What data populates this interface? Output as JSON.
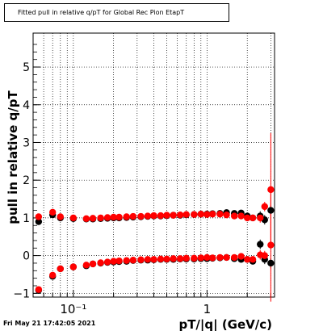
{
  "title": "Fitted pull in relative q/pT for Global Rec Pion EtapT",
  "footer_date": "Fri May 21 17:42:05 2021",
  "chart_data": {
    "type": "scatter",
    "title": "Fitted pull in relative q/pT for Global Rec Pion EtapT",
    "xlabel": "pT/|q| (GeV/c)",
    "ylabel": "pull in relative q/pT",
    "x_scale": "log",
    "xlim": [
      0.05,
      3.2
    ],
    "ylim": [
      -1.1,
      5.9
    ],
    "x_major_ticks": [
      0.1,
      1
    ],
    "x_tick_labels": [
      "10⁻¹",
      "1"
    ],
    "y_ticks": [
      -1,
      0,
      1,
      2,
      3,
      4,
      5
    ],
    "y_tick_labels": [
      "−1",
      "0",
      "1",
      "2",
      "3",
      "4",
      "5"
    ],
    "grid": true,
    "colors": {
      "black_series": "#000000",
      "red_series": "#ff0000"
    },
    "series": [
      {
        "marker": "black-filled-circle",
        "color": "#000000",
        "group": "mean",
        "x": [
          0.055,
          0.07,
          0.08,
          0.1,
          0.125,
          0.14,
          0.16,
          0.18,
          0.2,
          0.22,
          0.25,
          0.28,
          0.32,
          0.36,
          0.4,
          0.45,
          0.5,
          0.56,
          0.63,
          0.7,
          0.8,
          0.9,
          1.0,
          1.1,
          1.25,
          1.4,
          1.6,
          1.8,
          2.0,
          2.2,
          2.5,
          2.7,
          3.0
        ],
        "y": [
          0.9,
          1.08,
          1.0,
          0.98,
          0.97,
          0.97,
          0.98,
          0.99,
          1.0,
          1.0,
          1.01,
          1.02,
          1.03,
          1.04,
          1.05,
          1.05,
          1.06,
          1.07,
          1.07,
          1.08,
          1.09,
          1.1,
          1.1,
          1.11,
          1.12,
          1.14,
          1.12,
          1.13,
          1.05,
          1.0,
          1.05,
          0.95,
          1.2
        ]
      },
      {
        "marker": "red-filled-circle",
        "color": "#ff0000",
        "group": "mean",
        "x": [
          0.055,
          0.07,
          0.08,
          0.1,
          0.125,
          0.14,
          0.16,
          0.18,
          0.2,
          0.22,
          0.25,
          0.28,
          0.32,
          0.36,
          0.4,
          0.45,
          0.5,
          0.56,
          0.63,
          0.7,
          0.8,
          0.9,
          1.0,
          1.1,
          1.25,
          1.4,
          1.6,
          1.8,
          2.0,
          2.2,
          2.5,
          2.7,
          3.0
        ],
        "y": [
          1.03,
          1.15,
          1.03,
          1.0,
          0.98,
          0.99,
          1.0,
          1.01,
          1.02,
          1.02,
          1.03,
          1.04,
          1.04,
          1.05,
          1.06,
          1.06,
          1.07,
          1.07,
          1.08,
          1.09,
          1.09,
          1.1,
          1.09,
          1.1,
          1.1,
          1.08,
          1.05,
          1.05,
          1.0,
          1.0,
          1.0,
          1.3,
          1.75
        ]
      },
      {
        "marker": "black-filled-circle",
        "color": "#000000",
        "group": "lower",
        "x": [
          0.055,
          0.07,
          0.08,
          0.1,
          0.125,
          0.14,
          0.16,
          0.18,
          0.2,
          0.22,
          0.25,
          0.28,
          0.32,
          0.36,
          0.4,
          0.45,
          0.5,
          0.56,
          0.63,
          0.7,
          0.8,
          0.9,
          1.0,
          1.1,
          1.25,
          1.4,
          1.6,
          1.8,
          2.0,
          2.2,
          2.5,
          2.7,
          3.0
        ],
        "y": [
          -0.92,
          -0.55,
          -0.35,
          -0.3,
          -0.27,
          -0.22,
          -0.2,
          -0.18,
          -0.17,
          -0.16,
          -0.15,
          -0.13,
          -0.12,
          -0.12,
          -0.11,
          -0.1,
          -0.1,
          -0.1,
          -0.09,
          -0.09,
          -0.09,
          -0.08,
          -0.08,
          -0.07,
          -0.06,
          -0.05,
          -0.08,
          -0.1,
          -0.1,
          -0.15,
          0.3,
          -0.1,
          -0.2
        ]
      },
      {
        "marker": "red-filled-circle",
        "color": "#ff0000",
        "group": "lower",
        "x": [
          0.055,
          0.07,
          0.08,
          0.1,
          0.125,
          0.14,
          0.16,
          0.18,
          0.2,
          0.22,
          0.25,
          0.28,
          0.32,
          0.36,
          0.4,
          0.45,
          0.5,
          0.56,
          0.63,
          0.7,
          0.8,
          0.9,
          1.0,
          1.1,
          1.25,
          1.4,
          1.6,
          1.8,
          2.0,
          2.2,
          2.5,
          2.7,
          3.0
        ],
        "y": [
          -0.9,
          -0.52,
          -0.35,
          -0.3,
          -0.25,
          -0.22,
          -0.19,
          -0.17,
          -0.15,
          -0.14,
          -0.13,
          -0.12,
          -0.11,
          -0.1,
          -0.1,
          -0.09,
          -0.09,
          -0.08,
          -0.08,
          -0.07,
          -0.07,
          -0.06,
          -0.05,
          -0.06,
          -0.05,
          -0.05,
          -0.05,
          -0.02,
          -0.1,
          -0.1,
          0.02,
          0.0,
          0.28
        ]
      }
    ]
  }
}
